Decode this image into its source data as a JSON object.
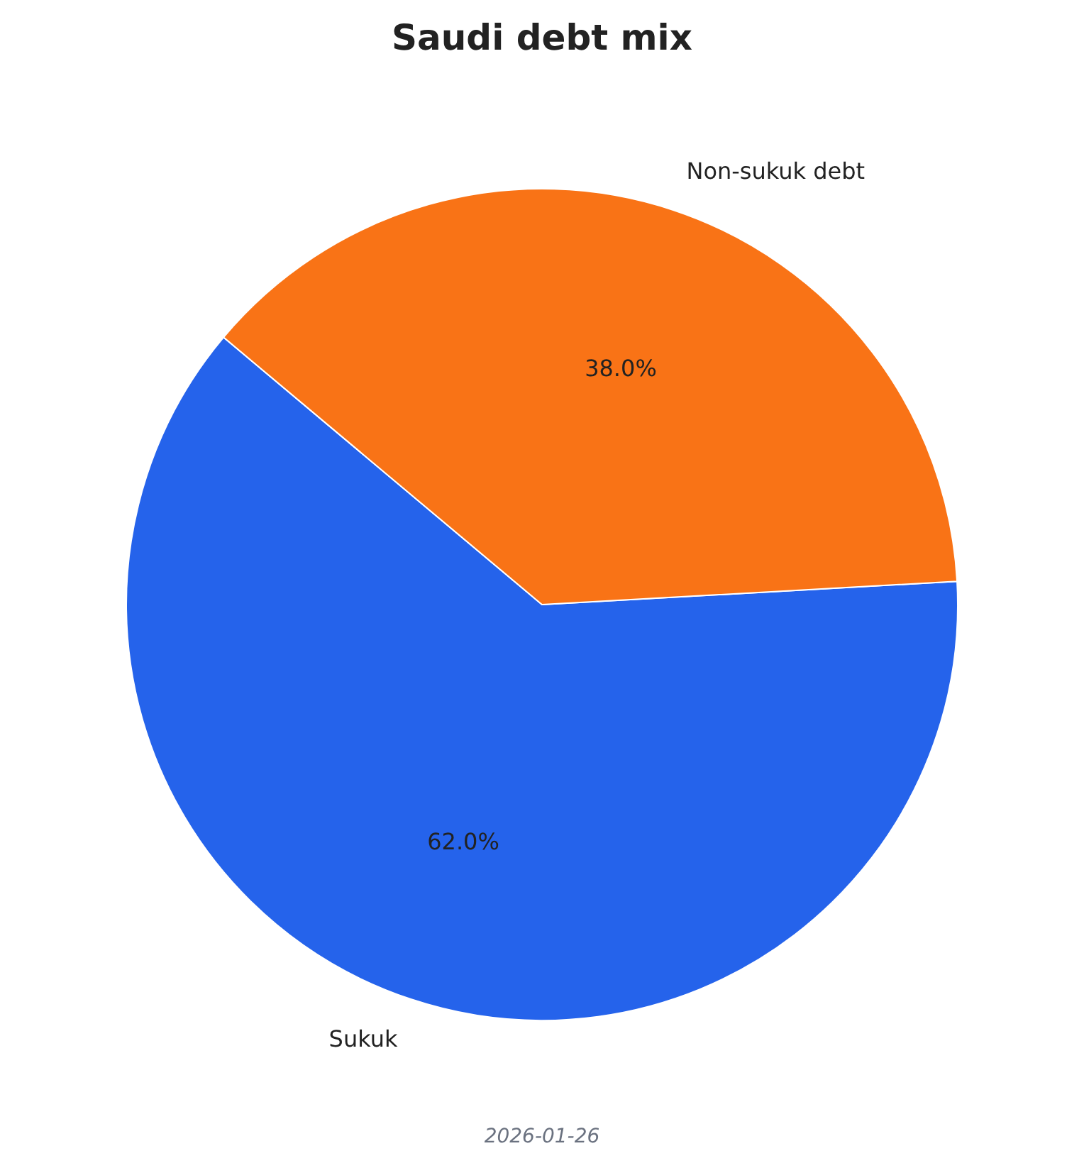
{
  "chart_data": {
    "type": "pie",
    "title": "Saudi debt mix",
    "categories": [
      "Sukuk",
      "Non-sukuk debt"
    ],
    "values": [
      62,
      38
    ],
    "value_labels": [
      "62.0%",
      "38.0%"
    ],
    "colors": [
      "#2563eb",
      "#f97316"
    ],
    "annotations": [
      "2026-01-26"
    ]
  }
}
